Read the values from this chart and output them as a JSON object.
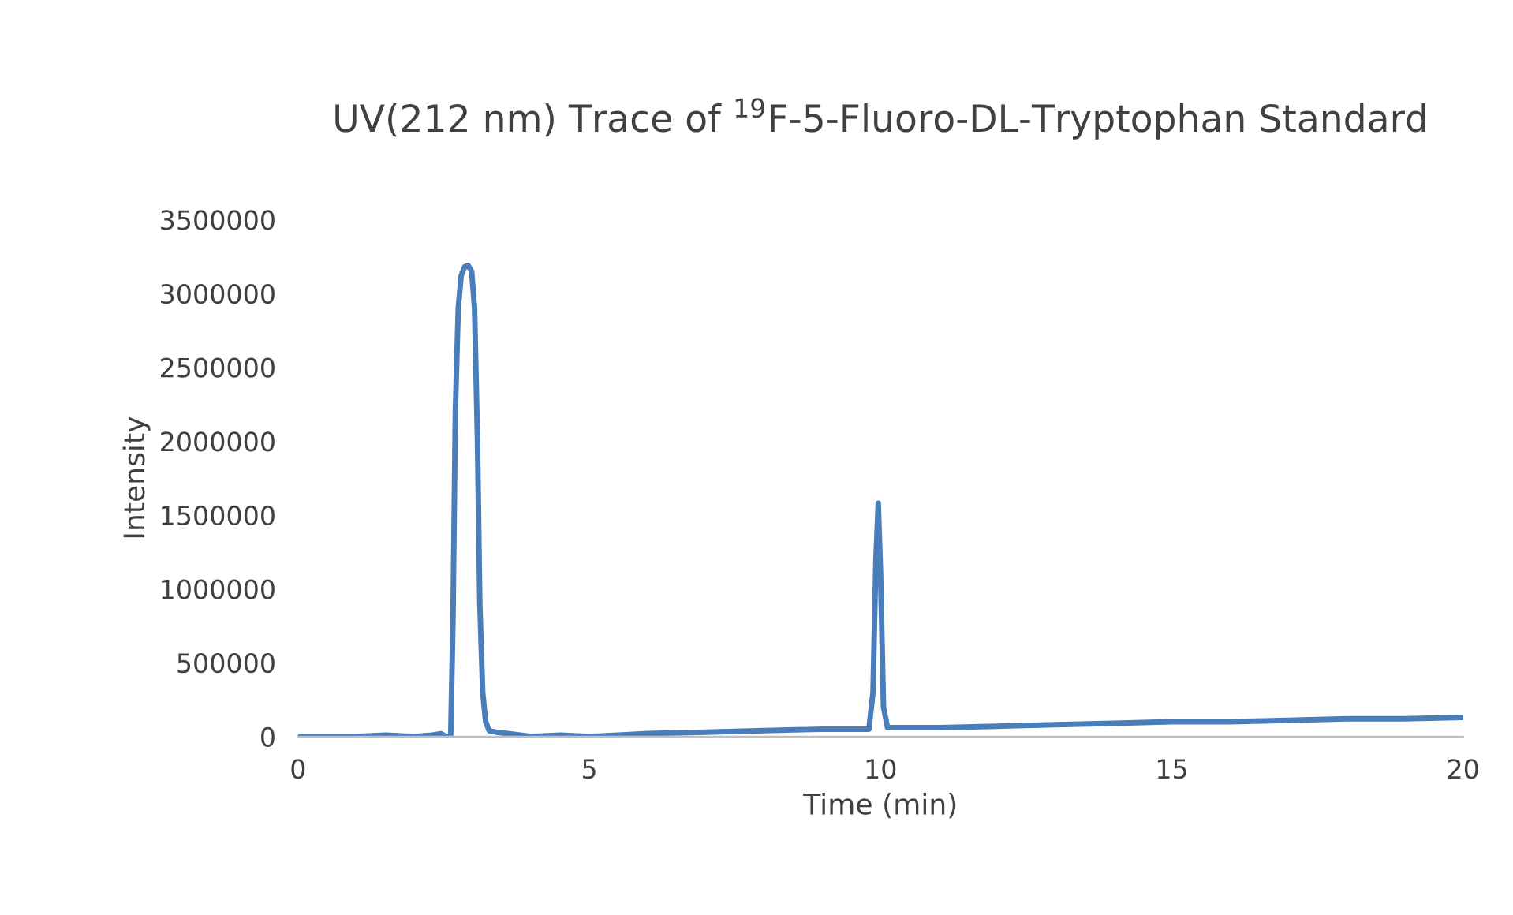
{
  "chart_data": {
    "type": "line",
    "title": "UV(212 nm) Trace of $^{19}$F-5-Fluoro-DL-Tryptophan Standard",
    "xlabel": "Time (min)",
    "ylabel": "Intensity",
    "series": [
      {
        "color": "#4a7ebb",
        "x": [
          0,
          0.5,
          1,
          1.5,
          2,
          2.3,
          2.45,
          2.55,
          2.62,
          2.66,
          2.7,
          2.75,
          2.8,
          2.86,
          2.92,
          2.98,
          3.03,
          3.08,
          3.12,
          3.17,
          3.22,
          3.28,
          3.4,
          3.6,
          4,
          4.5,
          5,
          5.5,
          6,
          7,
          8,
          9,
          9.8,
          9.87,
          9.92,
          9.96,
          10.0,
          10.05,
          10.12,
          10.3,
          11,
          12,
          13,
          14,
          15,
          16,
          17,
          18,
          19,
          20
        ],
        "values": [
          0,
          0,
          0,
          10000,
          0,
          10000,
          20000,
          0,
          0,
          800000,
          2200000,
          2900000,
          3120000,
          3180000,
          3190000,
          3150000,
          2900000,
          2000000,
          900000,
          300000,
          100000,
          40000,
          30000,
          20000,
          0,
          10000,
          0,
          10000,
          20000,
          30000,
          40000,
          50000,
          50000,
          300000,
          1200000,
          1580000,
          1100000,
          200000,
          60000,
          60000,
          60000,
          70000,
          80000,
          90000,
          100000,
          100000,
          110000,
          120000,
          120000,
          130000
        ]
      }
    ],
    "xlim": [
      0,
      20
    ],
    "xticks": [
      0,
      5,
      10,
      15,
      20
    ],
    "ylim": [
      0,
      3500000
    ],
    "yticks": [
      0,
      500000,
      1000000,
      1500000,
      2000000,
      2500000,
      3000000,
      3500000
    ],
    "grid": false,
    "legend": false,
    "marker": "none",
    "line_style": "solid"
  }
}
